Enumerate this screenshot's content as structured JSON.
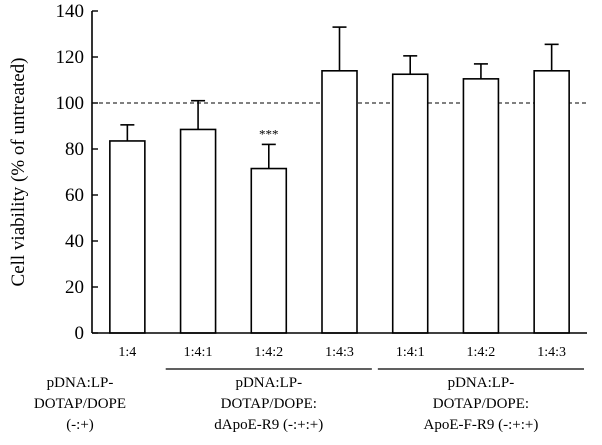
{
  "chart_data": {
    "type": "bar",
    "ylabel": "Cell viability (% of untreated)",
    "ylim": [
      0,
      140
    ],
    "yticks": [
      0,
      20,
      40,
      60,
      80,
      100,
      120,
      140
    ],
    "reference_line": 100,
    "categories": [
      "1:4",
      "1:4:1",
      "1:4:2",
      "1:4:3",
      "1:4:1",
      "1:4:2",
      "1:4:3"
    ],
    "values": [
      83.5,
      88.5,
      71.5,
      114,
      112.5,
      110.5,
      114
    ],
    "errors": [
      7,
      12.5,
      10.5,
      19,
      8,
      6.5,
      11.5
    ],
    "annotations": [
      {
        "index": 2,
        "text": "***"
      }
    ],
    "groups": [
      {
        "lines": [
          "pDNA:LP-",
          "DOTAP/DOPE",
          "(-:+)"
        ],
        "start": 0,
        "end": 0,
        "underline": false
      },
      {
        "lines": [
          "pDNA:LP-",
          "DOTAP/DOPE:",
          "dApoE-R9 (-:+:+)"
        ],
        "start": 1,
        "end": 3,
        "underline": true
      },
      {
        "lines": [
          "pDNA:LP-",
          "DOTAP/DOPE:",
          "ApoE-F-R9 (-:+:+)"
        ],
        "start": 4,
        "end": 6,
        "underline": true
      }
    ],
    "grid": false,
    "legend": "none"
  }
}
